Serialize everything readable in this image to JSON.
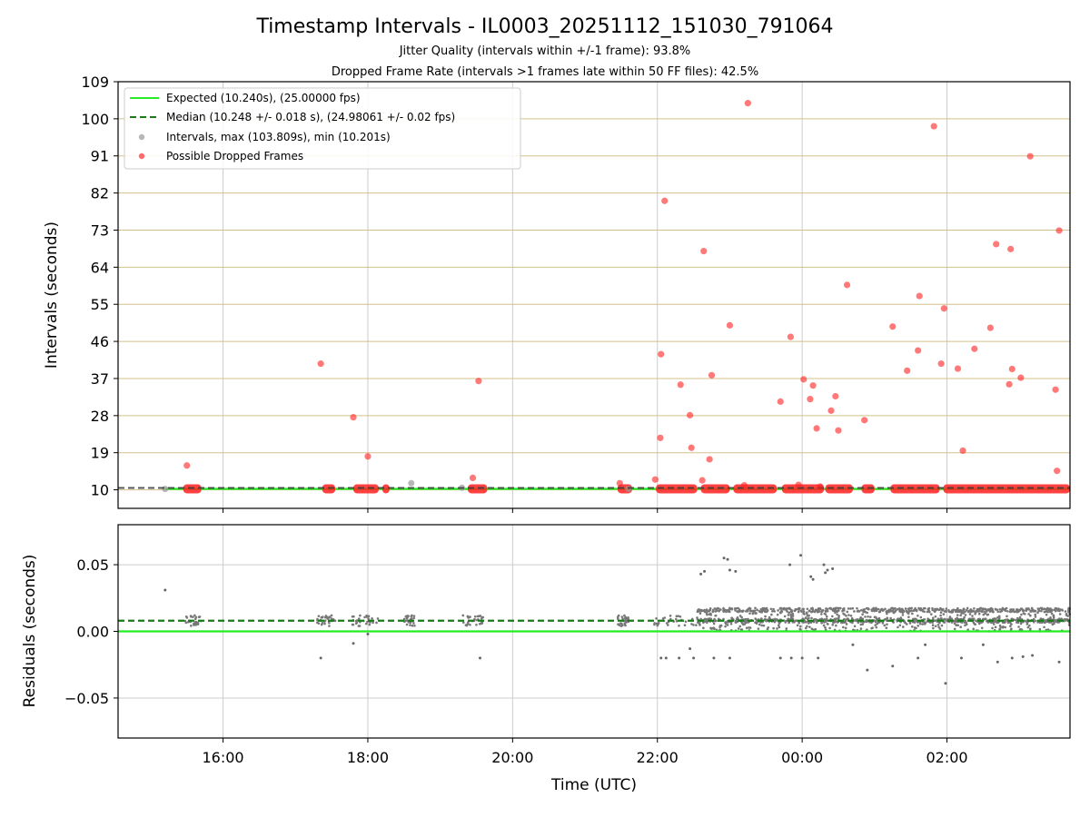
{
  "chart_data": {
    "type": "scatter",
    "title": "Timestamp Intervals - IL0003_20251112_151030_791064",
    "subtitle_jitter": "Jitter Quality (intervals within +/-1 frame): 93.8%",
    "subtitle_dropped": "Dropped Frame Rate (intervals >1 frames late within 50 FF files): 42.5%",
    "xlabel": "Time (UTC)",
    "x_tick_labels": [
      "16:00",
      "18:00",
      "20:00",
      "22:00",
      "00:00",
      "02:00"
    ],
    "x_tick_hours": [
      16,
      18,
      20,
      22,
      24,
      26
    ],
    "xlim_hours": [
      14.55,
      27.7
    ],
    "top_panel": {
      "ylabel": "Intervals (seconds)",
      "ylim": [
        5.5,
        109
      ],
      "y_ticks": [
        10,
        19,
        28,
        37,
        46,
        55,
        64,
        73,
        82,
        91,
        100,
        109
      ],
      "expected_value": 10.24,
      "median_value": 10.248,
      "legend": {
        "expected": "Expected (10.240s), (25.00000 fps)",
        "median": "Median (10.248 +/- 0.018 s), (24.98061 +/- 0.02 fps)",
        "intervals": "Intervals, max (103.809s), min (10.201s)",
        "dropped": "Possible Dropped Frames"
      },
      "colors": {
        "expected": "#22ee22",
        "median": "#1a7a1a",
        "intervals": "#999999",
        "dropped": "#ff2020",
        "grid_h": "#d4c08a"
      },
      "interval_points": [
        [
          15.2,
          10.2
        ],
        [
          18.6,
          11.6
        ],
        [
          19.3,
          10.5
        ],
        [
          21.6,
          10.2
        ]
      ],
      "dropped_points": [
        [
          15.5,
          15.9
        ],
        [
          17.35,
          40.6
        ],
        [
          17.8,
          27.6
        ],
        [
          18.0,
          18.1
        ],
        [
          19.45,
          12.9
        ],
        [
          19.53,
          36.4
        ],
        [
          21.48,
          11.6
        ],
        [
          21.97,
          12.5
        ],
        [
          22.04,
          22.6
        ],
        [
          22.05,
          42.9
        ],
        [
          22.1,
          80.1
        ],
        [
          22.32,
          35.5
        ],
        [
          22.45,
          28.1
        ],
        [
          22.47,
          20.2
        ],
        [
          22.62,
          12.3
        ],
        [
          22.64,
          67.9
        ],
        [
          22.72,
          17.4
        ],
        [
          22.75,
          37.8
        ],
        [
          23.0,
          49.9
        ],
        [
          23.2,
          11.1
        ],
        [
          23.25,
          103.8
        ],
        [
          23.7,
          31.4
        ],
        [
          23.84,
          47.1
        ],
        [
          23.95,
          11.2
        ],
        [
          24.02,
          36.8
        ],
        [
          24.11,
          32.0
        ],
        [
          24.15,
          35.3
        ],
        [
          24.2,
          24.9
        ],
        [
          24.25,
          10.8
        ],
        [
          24.4,
          29.2
        ],
        [
          24.46,
          32.7
        ],
        [
          24.5,
          24.4
        ],
        [
          24.62,
          59.7
        ],
        [
          24.86,
          26.9
        ],
        [
          25.25,
          49.6
        ],
        [
          25.45,
          38.9
        ],
        [
          25.6,
          43.8
        ],
        [
          25.62,
          57.0
        ],
        [
          25.82,
          98.2
        ],
        [
          25.92,
          40.6
        ],
        [
          25.96,
          54.0
        ],
        [
          26.15,
          39.4
        ],
        [
          26.22,
          19.5
        ],
        [
          26.38,
          44.2
        ],
        [
          26.6,
          49.3
        ],
        [
          26.68,
          69.6
        ],
        [
          26.86,
          35.6
        ],
        [
          26.9,
          39.3
        ],
        [
          26.88,
          68.4
        ],
        [
          27.02,
          37.2
        ],
        [
          27.15,
          90.9
        ],
        [
          27.5,
          34.3
        ],
        [
          27.52,
          14.6
        ],
        [
          27.55,
          72.9
        ]
      ],
      "dense_segments_hours": [
        [
          15.45,
          15.7
        ],
        [
          17.37,
          17.55
        ],
        [
          17.8,
          18.15
        ],
        [
          18.2,
          18.3
        ],
        [
          19.38,
          19.65
        ],
        [
          21.45,
          21.65
        ],
        [
          21.98,
          22.55
        ],
        [
          22.6,
          23.0
        ],
        [
          23.05,
          23.65
        ],
        [
          23.72,
          24.3
        ],
        [
          24.32,
          24.7
        ],
        [
          24.82,
          25.0
        ],
        [
          25.22,
          25.9
        ],
        [
          25.95,
          27.7
        ]
      ]
    },
    "bottom_panel": {
      "ylabel": "Residuals (seconds)",
      "ylim": [
        -0.08,
        0.08
      ],
      "y_ticks": [
        -0.05,
        0.0,
        0.05
      ],
      "y_tick_labels": [
        "−0.05",
        "0.00",
        "0.05"
      ],
      "expected_value": 0.0,
      "median_value": 0.008,
      "outliers": [
        [
          15.2,
          0.031
        ],
        [
          17.35,
          -0.02
        ],
        [
          17.8,
          -0.009
        ],
        [
          18.0,
          -0.002
        ],
        [
          19.55,
          -0.02
        ],
        [
          22.05,
          -0.02
        ],
        [
          22.12,
          -0.02
        ],
        [
          22.3,
          -0.02
        ],
        [
          22.45,
          -0.013
        ],
        [
          22.5,
          -0.02
        ],
        [
          22.6,
          0.043
        ],
        [
          22.65,
          0.045
        ],
        [
          22.78,
          -0.02
        ],
        [
          22.92,
          0.055
        ],
        [
          22.97,
          0.054
        ],
        [
          23.0,
          0.046
        ],
        [
          23.08,
          0.045
        ],
        [
          23.0,
          -0.02
        ],
        [
          23.7,
          -0.02
        ],
        [
          23.83,
          0.05
        ],
        [
          23.85,
          -0.02
        ],
        [
          24.0,
          -0.02
        ],
        [
          23.98,
          0.057
        ],
        [
          24.12,
          0.041
        ],
        [
          24.15,
          0.039
        ],
        [
          24.22,
          -0.02
        ],
        [
          24.3,
          0.05
        ],
        [
          24.32,
          0.044
        ],
        [
          24.35,
          0.046
        ],
        [
          24.42,
          0.047
        ],
        [
          24.7,
          -0.01
        ],
        [
          24.9,
          -0.029
        ],
        [
          25.25,
          -0.026
        ],
        [
          25.6,
          -0.02
        ],
        [
          25.7,
          -0.01
        ],
        [
          25.98,
          -0.039
        ],
        [
          26.2,
          -0.02
        ],
        [
          26.5,
          -0.01
        ],
        [
          26.7,
          -0.023
        ],
        [
          26.9,
          -0.02
        ],
        [
          27.05,
          -0.019
        ],
        [
          27.18,
          -0.018
        ],
        [
          27.55,
          -0.023
        ]
      ]
    }
  }
}
